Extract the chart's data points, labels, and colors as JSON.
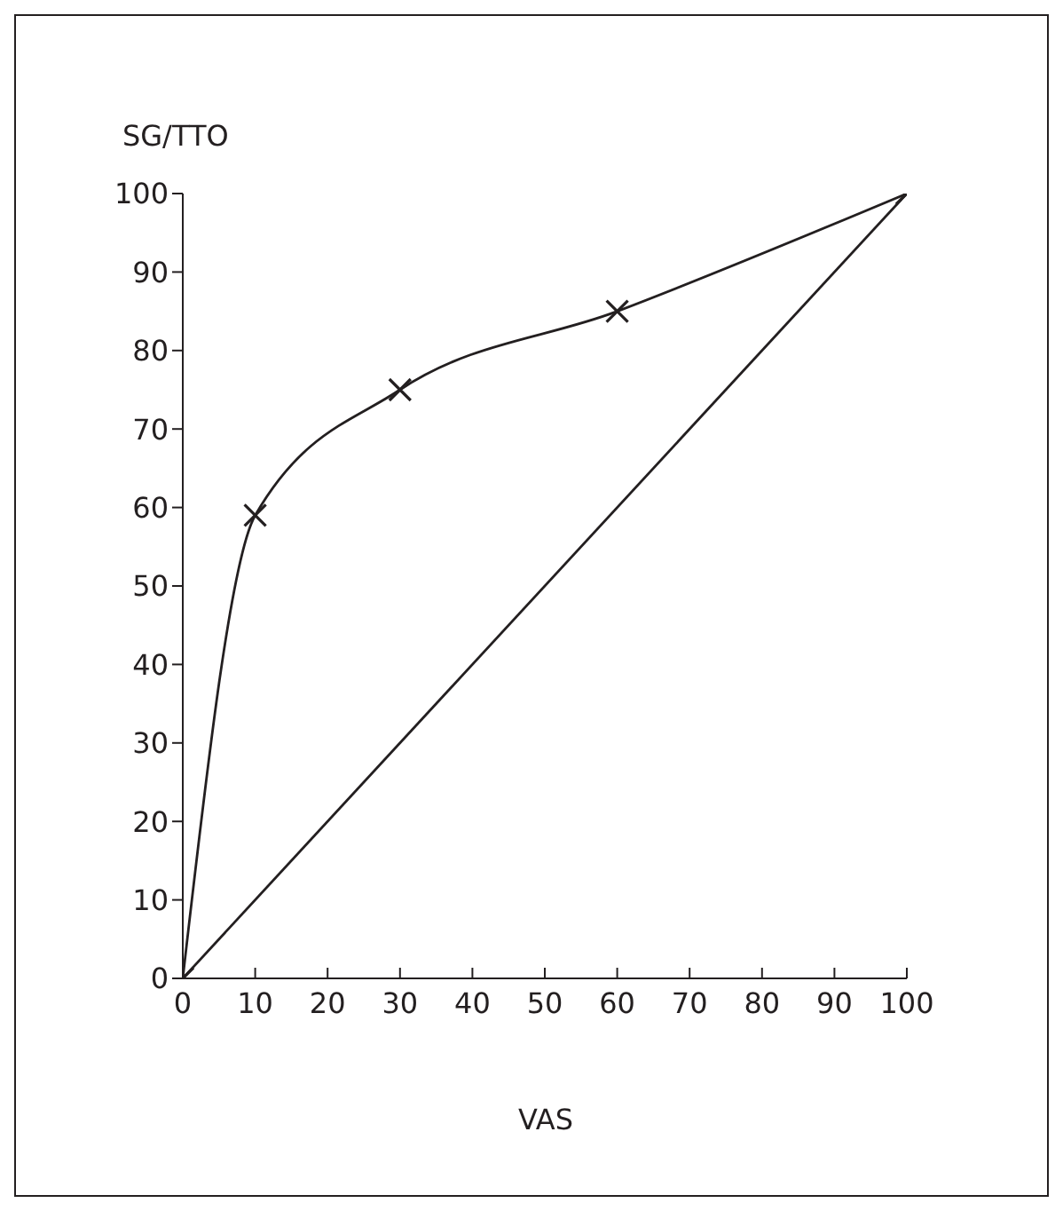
{
  "chart_data": {
    "type": "line",
    "xlabel": "VAS",
    "ylabel": "SG/TTO",
    "xlim": [
      0,
      100
    ],
    "ylim": [
      0,
      100
    ],
    "xticks": [
      0,
      10,
      20,
      30,
      40,
      50,
      60,
      70,
      80,
      90,
      100
    ],
    "yticks": [
      0,
      10,
      20,
      30,
      40,
      50,
      60,
      70,
      80,
      90,
      100
    ],
    "series": [
      {
        "color": "#231f20",
        "marker": "cross",
        "x": [
          0,
          10,
          30,
          60,
          100
        ],
        "values": [
          0,
          59,
          75,
          85,
          100
        ]
      },
      {
        "color": "#231f20",
        "marker": "none",
        "x": [
          0,
          100
        ],
        "values": [
          0,
          100
        ]
      }
    ]
  }
}
